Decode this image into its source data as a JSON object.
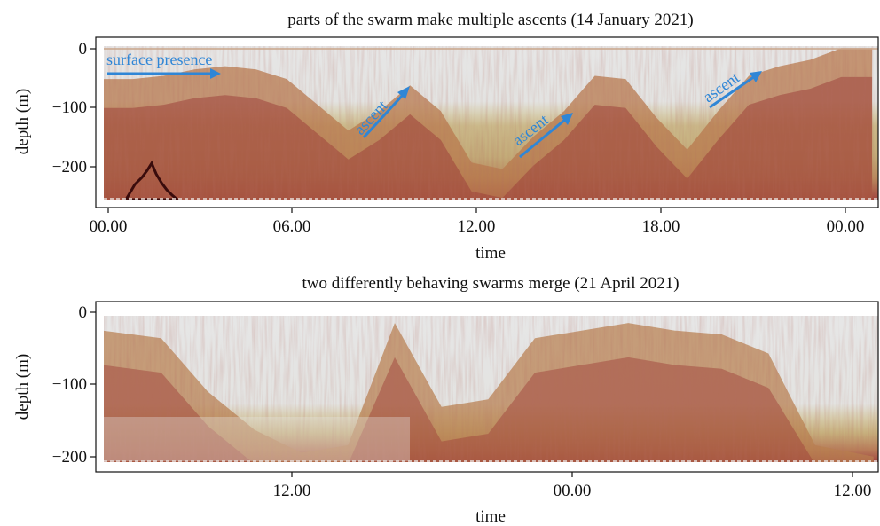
{
  "figure": {
    "panels": [
      {
        "title": "parts of the swarm make multiple ascents (14 January 2021)",
        "xlabel": "time",
        "ylabel": "depth (m)",
        "xticks": [
          "00.00",
          "06.00",
          "12.00",
          "18.00",
          "00.00"
        ],
        "yticks": [
          "0",
          "−100",
          "−200"
        ],
        "annotations": [
          {
            "text": "surface presence",
            "color": "#2f86d6"
          },
          {
            "text": "ascent",
            "color": "#2f86d6"
          },
          {
            "text": "ascent",
            "color": "#2f86d6"
          },
          {
            "text": "ascent",
            "color": "#2f86d6"
          }
        ]
      },
      {
        "title": "two differently behaving swarms merge (21 April 2021)",
        "xlabel": "time",
        "ylabel": "depth (m)",
        "xticks": [
          "12.00",
          "00.00",
          "12.00"
        ],
        "yticks": [
          "0",
          "−100",
          "−200"
        ],
        "annotations": []
      }
    ]
  },
  "chart_data": [
    {
      "type": "heatmap",
      "title": "parts of the swarm make multiple ascents (14 January 2021)",
      "xlabel": "time",
      "ylabel": "depth (m)",
      "x_ticks": [
        "00.00",
        "06.00",
        "12.00",
        "18.00",
        "00.00"
      ],
      "x_tick_hours": [
        0,
        6,
        12,
        18,
        24
      ],
      "xlim_hours": [
        -0.2,
        25.2
      ],
      "y_ticks": [
        0,
        -100,
        -200
      ],
      "ylim": [
        -260,
        5
      ],
      "data_bottom": -255,
      "colormap": [
        "#e4e4e4",
        "#c9b67f",
        "#a84a43",
        "#3a0c0c"
      ],
      "swarm_top_depth": {
        "time_hours": [
          0,
          1,
          2,
          3,
          4,
          5,
          6,
          7,
          8,
          9,
          10,
          11,
          12,
          13,
          14,
          15,
          16,
          17,
          18,
          19,
          20,
          21,
          22,
          23,
          24,
          25
        ],
        "depth": [
          -60,
          -60,
          -55,
          -45,
          -40,
          -45,
          -60,
          -100,
          -140,
          -110,
          -70,
          -110,
          -190,
          -200,
          -150,
          -110,
          -55,
          -60,
          -120,
          -170,
          -110,
          -55,
          -40,
          -30,
          -12,
          -12
        ]
      },
      "bottom_layer_top": -140,
      "annotations": [
        {
          "text": "surface presence",
          "type": "arrow",
          "from_hours": 0,
          "to_hours": 3.8,
          "depth": -45
        },
        {
          "text": "ascent",
          "type": "arrow",
          "from": [
            8.3,
            -150
          ],
          "to": [
            10.0,
            -70
          ]
        },
        {
          "text": "ascent",
          "type": "arrow",
          "from": [
            13.5,
            -185
          ],
          "to": [
            15.3,
            -105
          ]
        },
        {
          "text": "ascent",
          "type": "arrow",
          "from": [
            20.5,
            -105
          ],
          "to": [
            22.2,
            -40
          ]
        }
      ],
      "grid": false,
      "legend": "none"
    },
    {
      "type": "heatmap",
      "title": "two differently behaving swarms merge (21 April 2021)",
      "xlabel": "time",
      "ylabel": "depth (m)",
      "x_ticks": [
        "12.00",
        "00.00",
        "12.00"
      ],
      "x_tick_hours": [
        12,
        24,
        36
      ],
      "xlim_hours": [
        3.2,
        36.7
      ],
      "y_ticks": [
        0,
        -100,
        -200
      ],
      "ylim": [
        -215,
        8
      ],
      "data_bottom": -205,
      "colormap": [
        "#e4e4e4",
        "#c9b67f",
        "#a84a43",
        "#3a0c0c"
      ],
      "swarm_top_depth": {
        "time_hours": [
          3.5,
          6,
          8,
          10,
          12,
          14,
          16,
          18,
          20,
          22,
          24,
          26,
          28,
          30,
          32,
          34,
          36.5
        ],
        "depth": [
          -30,
          -40,
          -110,
          -160,
          -190,
          -180,
          -20,
          -130,
          -120,
          -40,
          -30,
          -20,
          -30,
          -35,
          -60,
          -180,
          -195
        ]
      },
      "bottom_layer_top": -150,
      "annotations": [],
      "grid": false,
      "legend": "none"
    }
  ]
}
